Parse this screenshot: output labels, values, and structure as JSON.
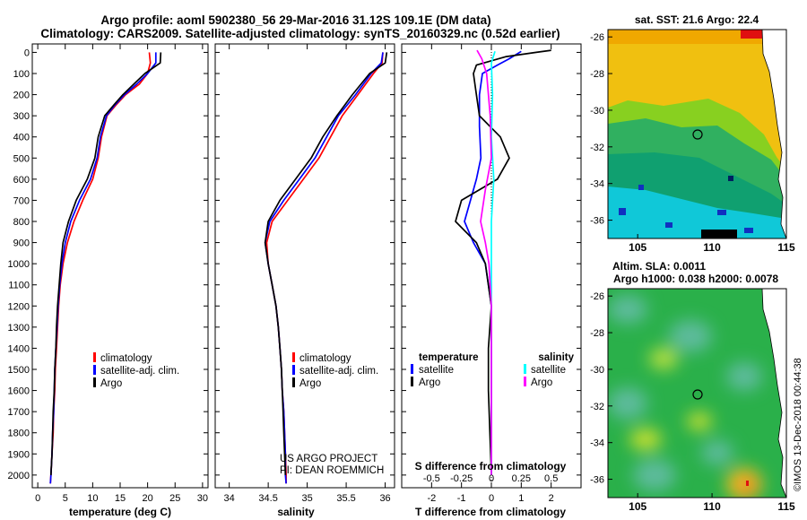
{
  "header": {
    "title1": "Argo profile: aoml 5902380_56 29-Mar-2016 31.12S 109.1E (DM data)",
    "title2": "Climatology: CARS2009. Satellite-adjusted climatology: synTS_20160329.nc (0.52d earlier)",
    "map1_title": "sat. SST: 21.6 Argo: 22.4",
    "map2_title1": "Altim. SLA: 0.0011",
    "map2_title2": "Argo h1000: 0.038 h2000: 0.0078",
    "credit1": "US ARGO PROJECT",
    "credit2": "PI: DEAN ROEMMICH",
    "footer": "©IMOS 13-Dec-2018 00:44:38"
  },
  "colors": {
    "climatology": "#ff0000",
    "satellite": "#0000ff",
    "argo": "#000000",
    "satellite_s": "#00ffff",
    "argo_s": "#ff00ff"
  },
  "depth_ticks": [
    0,
    100,
    200,
    300,
    400,
    500,
    600,
    700,
    800,
    900,
    1000,
    1100,
    1200,
    1300,
    1400,
    1500,
    1600,
    1700,
    1800,
    1900,
    2000
  ],
  "chart_data": [
    {
      "type": "line",
      "xlabel": "temperature (deg C)",
      "xticks": [
        0,
        5,
        10,
        15,
        20,
        25,
        30
      ],
      "xlim": [
        -1,
        31
      ],
      "ylim": [
        2060,
        -40
      ],
      "legend": [
        "climatology",
        "satellite-adj. clim.",
        "Argo"
      ],
      "series": [
        {
          "name": "climatology",
          "color": "#ff0000",
          "points": [
            [
              20.3,
              0
            ],
            [
              20.5,
              50
            ],
            [
              20,
              100
            ],
            [
              18.5,
              150
            ],
            [
              16,
              200
            ],
            [
              14.2,
              250
            ],
            [
              12.6,
              300
            ],
            [
              11.6,
              400
            ],
            [
              11,
              500
            ],
            [
              10,
              600
            ],
            [
              8.2,
              700
            ],
            [
              6.6,
              800
            ],
            [
              5.4,
              900
            ],
            [
              4.6,
              1000
            ],
            [
              4.1,
              1100
            ],
            [
              3.8,
              1200
            ],
            [
              3.6,
              1300
            ],
            [
              3.4,
              1400
            ],
            [
              3.2,
              1500
            ],
            [
              3.1,
              1600
            ],
            [
              2.9,
              1700
            ],
            [
              2.8,
              1800
            ],
            [
              2.6,
              1900
            ],
            [
              2.4,
              2000
            ],
            [
              2.3,
              2040
            ]
          ]
        },
        {
          "name": "satellite-adj. clim.",
          "color": "#0000ff",
          "points": [
            [
              21.5,
              0
            ],
            [
              21.5,
              50
            ],
            [
              20,
              100
            ],
            [
              18,
              150
            ],
            [
              15.8,
              200
            ],
            [
              14,
              250
            ],
            [
              12.5,
              300
            ],
            [
              11.4,
              400
            ],
            [
              10.8,
              500
            ],
            [
              9.6,
              600
            ],
            [
              7.6,
              700
            ],
            [
              6,
              800
            ],
            [
              5,
              900
            ],
            [
              4.4,
              1000
            ],
            [
              4,
              1100
            ],
            [
              3.7,
              1200
            ],
            [
              3.5,
              1300
            ],
            [
              3.3,
              1400
            ],
            [
              3.1,
              1500
            ],
            [
              3,
              1600
            ],
            [
              2.9,
              1700
            ],
            [
              2.7,
              1800
            ],
            [
              2.6,
              1900
            ],
            [
              2.4,
              2000
            ],
            [
              2.3,
              2040
            ]
          ]
        },
        {
          "name": "Argo",
          "color": "#000000",
          "points": [
            [
              22.4,
              0
            ],
            [
              22.3,
              50
            ],
            [
              19.5,
              100
            ],
            [
              17.5,
              150
            ],
            [
              15.5,
              200
            ],
            [
              13.8,
              250
            ],
            [
              12.2,
              300
            ],
            [
              11,
              400
            ],
            [
              10.4,
              500
            ],
            [
              9,
              600
            ],
            [
              7,
              700
            ],
            [
              5.6,
              800
            ],
            [
              4.6,
              900
            ],
            [
              4.2,
              1000
            ],
            [
              3.9,
              1100
            ],
            [
              3.6,
              1200
            ],
            [
              3.4,
              1300
            ],
            [
              3.3,
              1400
            ],
            [
              3.1,
              1500
            ],
            [
              3,
              1600
            ],
            [
              2.8,
              1700
            ],
            [
              2.7,
              1800
            ],
            [
              2.6,
              1900
            ],
            [
              2.4,
              2000
            ]
          ]
        }
      ]
    },
    {
      "type": "line",
      "xlabel": "salinity",
      "xticks": [
        34,
        34.5,
        35,
        35.5,
        36
      ],
      "xlim": [
        33.82,
        36.12
      ],
      "ylim": [
        2060,
        -40
      ],
      "legend": [
        "climatology",
        "satellite-adj. clim.",
        "Argo"
      ],
      "series": [
        {
          "name": "climatology",
          "color": "#ff0000",
          "points": [
            [
              35.97,
              0
            ],
            [
              35.96,
              50
            ],
            [
              35.85,
              100
            ],
            [
              35.65,
              200
            ],
            [
              35.45,
              300
            ],
            [
              35.3,
              400
            ],
            [
              35.15,
              500
            ],
            [
              34.95,
              600
            ],
            [
              34.75,
              700
            ],
            [
              34.55,
              800
            ],
            [
              34.48,
              900
            ],
            [
              34.5,
              1000
            ],
            [
              34.55,
              1100
            ],
            [
              34.6,
              1200
            ],
            [
              34.63,
              1300
            ],
            [
              34.65,
              1400
            ],
            [
              34.67,
              1500
            ],
            [
              34.68,
              1600
            ],
            [
              34.7,
              1700
            ],
            [
              34.71,
              1800
            ],
            [
              34.72,
              1900
            ],
            [
              34.73,
              2000
            ],
            [
              34.73,
              2040
            ]
          ]
        },
        {
          "name": "satellite-adj. clim.",
          "color": "#0000ff",
          "points": [
            [
              35.97,
              0
            ],
            [
              35.95,
              50
            ],
            [
              35.82,
              100
            ],
            [
              35.62,
              200
            ],
            [
              35.4,
              300
            ],
            [
              35.25,
              400
            ],
            [
              35.1,
              500
            ],
            [
              34.9,
              600
            ],
            [
              34.7,
              700
            ],
            [
              34.52,
              800
            ],
            [
              34.46,
              900
            ],
            [
              34.5,
              1000
            ],
            [
              34.55,
              1100
            ],
            [
              34.6,
              1200
            ],
            [
              34.63,
              1300
            ],
            [
              34.65,
              1400
            ],
            [
              34.67,
              1500
            ],
            [
              34.68,
              1600
            ],
            [
              34.7,
              1700
            ],
            [
              34.71,
              1800
            ],
            [
              34.72,
              1900
            ],
            [
              34.72,
              2000
            ],
            [
              34.73,
              2040
            ]
          ]
        },
        {
          "name": "Argo",
          "color": "#000000",
          "points": [
            [
              36.02,
              0
            ],
            [
              36,
              50
            ],
            [
              35.8,
              100
            ],
            [
              35.58,
              200
            ],
            [
              35.38,
              300
            ],
            [
              35.2,
              400
            ],
            [
              35.05,
              500
            ],
            [
              34.85,
              600
            ],
            [
              34.65,
              700
            ],
            [
              34.5,
              800
            ],
            [
              34.46,
              900
            ],
            [
              34.5,
              1000
            ],
            [
              34.55,
              1100
            ],
            [
              34.6,
              1200
            ],
            [
              34.63,
              1300
            ],
            [
              34.65,
              1400
            ],
            [
              34.67,
              1500
            ],
            [
              34.68,
              1600
            ],
            [
              34.69,
              1700
            ],
            [
              34.7,
              1800
            ],
            [
              34.71,
              1900
            ],
            [
              34.72,
              2000
            ]
          ]
        }
      ]
    },
    {
      "type": "line",
      "xlabel": "T difference from climatology",
      "xlabel_s": "S difference from climatology",
      "xticks": [
        -2,
        -1,
        0,
        1,
        2
      ],
      "xticks_s": [
        "-0.5",
        "-0.25",
        "0",
        "0.25",
        "0.5"
      ],
      "xlim": [
        -3,
        3
      ],
      "xlim_s": [
        -0.75,
        0.75
      ],
      "ylim": [
        2060,
        -40
      ],
      "legend_t_title": "temperature",
      "legend_s_title": "salinity",
      "legend_t": [
        "satellite",
        "Argo"
      ],
      "legend_s": [
        "satellite",
        "Argo"
      ],
      "series": [
        {
          "name": "satellite",
          "color": "#0000ff",
          "points": [
            [
              1,
              -5
            ],
            [
              0.6,
              30
            ],
            [
              0.2,
              60
            ],
            [
              -0.3,
              100
            ],
            [
              -0.4,
              200
            ],
            [
              -0.4,
              350
            ],
            [
              -0.35,
              500
            ],
            [
              -0.5,
              600
            ],
            [
              -0.7,
              700
            ],
            [
              -0.9,
              800
            ],
            [
              -0.6,
              900
            ],
            [
              -0.2,
              1000
            ],
            [
              -0.1,
              1100
            ],
            [
              0,
              1200
            ],
            [
              0,
              2000
            ]
          ]
        },
        {
          "name": "Argo",
          "color": "#000000",
          "points": [
            [
              2,
              -10
            ],
            [
              1.5,
              0
            ],
            [
              0.5,
              20
            ],
            [
              -0.5,
              60
            ],
            [
              -0.6,
              100
            ],
            [
              -0.5,
              200
            ],
            [
              -0.4,
              300
            ],
            [
              0.3,
              400
            ],
            [
              0.6,
              500
            ],
            [
              0.2,
              600
            ],
            [
              -1,
              700
            ],
            [
              -1.2,
              800
            ],
            [
              -0.5,
              900
            ],
            [
              -0.2,
              1000
            ],
            [
              0,
              1200
            ],
            [
              -0.1,
              1400
            ],
            [
              -0.1,
              1600
            ],
            [
              0,
              2000
            ]
          ]
        },
        {
          "name": "satellite",
          "color": "#00ffff",
          "points": [
            [
              0.03,
              -5
            ],
            [
              0,
              50
            ],
            [
              0.01,
              200
            ],
            [
              0,
              400
            ],
            [
              0.02,
              600
            ],
            [
              0,
              800
            ],
            [
              0,
              2000
            ]
          ]
        },
        {
          "name": "Argo",
          "color": "#ff00ff",
          "points": [
            [
              -0.12,
              -10
            ],
            [
              -0.08,
              30
            ],
            [
              -0.04,
              100
            ],
            [
              -0.01,
              300
            ],
            [
              0,
              500
            ],
            [
              -0.05,
              650
            ],
            [
              -0.09,
              800
            ],
            [
              -0.05,
              900
            ],
            [
              -0.02,
              1000
            ],
            [
              0,
              1200
            ],
            [
              0,
              2000
            ]
          ]
        }
      ]
    }
  ],
  "maps": [
    {
      "lon_ticks": [
        105,
        110,
        115
      ],
      "lat_ticks": [
        -26,
        -28,
        -30,
        -32,
        -34,
        -36
      ]
    },
    {
      "lon_ticks": [
        105,
        110,
        115
      ],
      "lat_ticks": [
        -26,
        -28,
        -30,
        -32,
        -34,
        -36
      ]
    }
  ]
}
